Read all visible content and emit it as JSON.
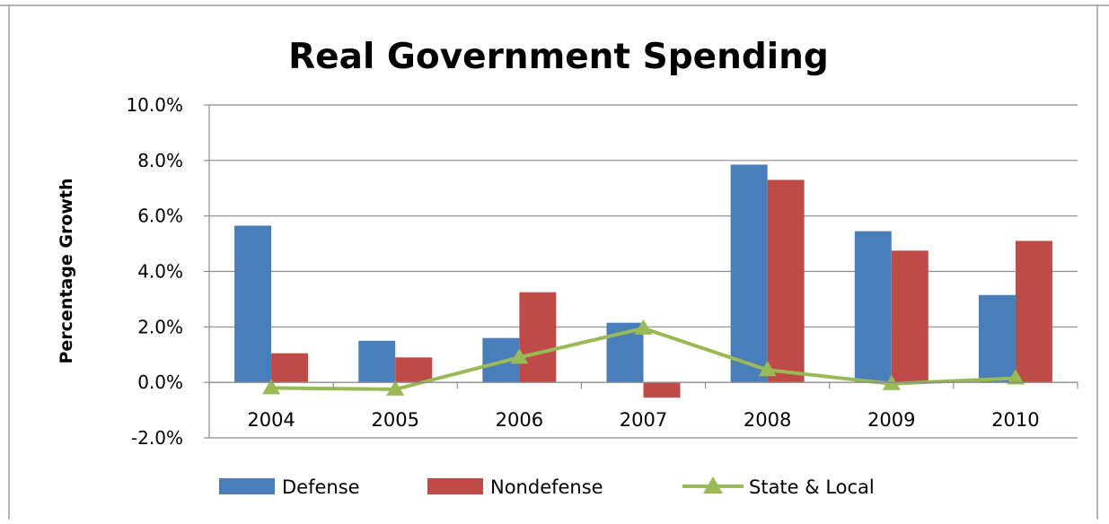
{
  "chart_data": {
    "type": "bar",
    "title": "Real Government Spending",
    "xlabel": "",
    "ylabel": "Percentage Growth",
    "categories": [
      "2004",
      "2005",
      "2006",
      "2007",
      "2008",
      "2009",
      "2010"
    ],
    "series": [
      {
        "name": "Defense",
        "kind": "bar",
        "color": "#4a7ebb",
        "values": [
          5.65,
          1.5,
          1.6,
          2.15,
          7.85,
          5.45,
          3.15
        ]
      },
      {
        "name": "Nondefense",
        "kind": "bar",
        "color": "#be4b48",
        "values": [
          1.05,
          0.9,
          3.25,
          -0.55,
          7.3,
          4.75,
          5.1
        ]
      },
      {
        "name": "State & Local",
        "kind": "line",
        "marker": "triangle",
        "color": "#98b954",
        "values": [
          -0.2,
          -0.25,
          0.9,
          1.95,
          0.45,
          -0.05,
          0.15
        ]
      }
    ],
    "ylim": [
      -2.0,
      10.0
    ],
    "yticks": [
      "-2.0%",
      "0.0%",
      "2.0%",
      "4.0%",
      "6.0%",
      "8.0%",
      "10.0%"
    ],
    "ytick_values": [
      -2,
      0,
      2,
      4,
      6,
      8,
      10
    ],
    "grid": true,
    "legend_position": "bottom"
  }
}
